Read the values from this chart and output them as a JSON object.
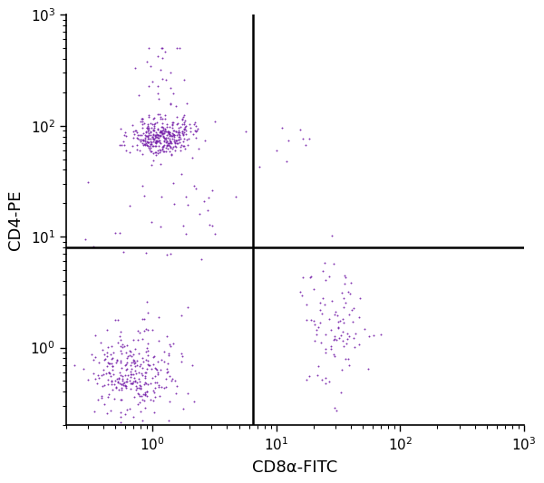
{
  "dot_color": "#7722AA",
  "dot_size": 2.0,
  "dot_alpha": 0.9,
  "xlabel": "CD8α-FITC",
  "ylabel": "CD4-PE",
  "xlim": [
    0.2,
    1000
  ],
  "ylim": [
    0.2,
    1000
  ],
  "gate_x": 6.5,
  "gate_y": 8.0,
  "background_color": "#ffffff",
  "seed": 12345
}
